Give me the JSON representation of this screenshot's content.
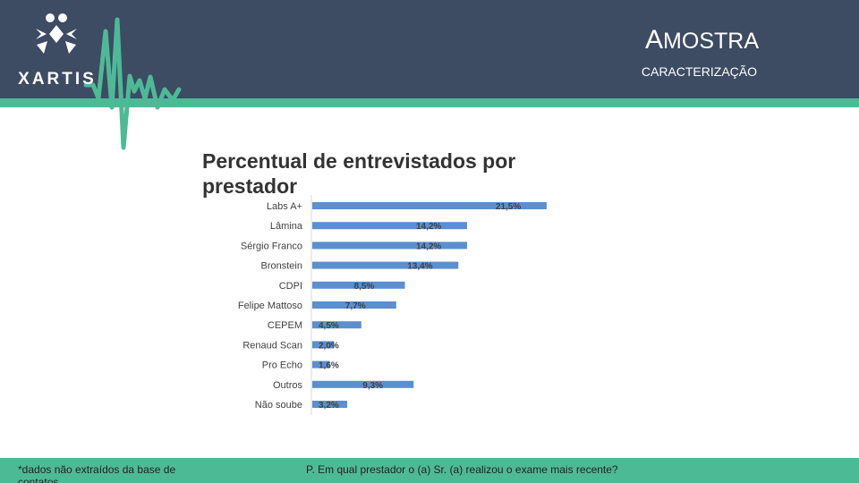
{
  "header": {
    "brand": "XARTIS",
    "title_cap": "A",
    "title_rest": "MOSTRA",
    "subtitle": "CARACTERIZAÇÃO",
    "colors": {
      "header": "#3d4b63",
      "accent": "#4dba96",
      "bar": "#5b8fd0"
    }
  },
  "chart_data": {
    "type": "bar",
    "orientation": "horizontal",
    "title": "Percentual de entrevistados por prestador",
    "categories": [
      "Labs A+",
      "Lâmina",
      "Sérgio Franco",
      "Bronstein",
      "CDPI",
      "Felipe Mattoso",
      "CEPEM",
      "Renaud Scan",
      "Pro Echo",
      "Outros",
      "Não soube"
    ],
    "values": [
      21.5,
      14.2,
      14.2,
      13.4,
      8.5,
      7.7,
      4.5,
      2.0,
      1.6,
      9.3,
      3.2
    ],
    "value_labels": [
      "21,5%",
      "14,2%",
      "14,2%",
      "13,4%",
      "8,5%",
      "7,7%",
      "4,5%",
      "2,0%",
      "1,6%",
      "9,3%",
      "3,2%"
    ],
    "xlim": [
      0,
      22
    ],
    "xlabel": "",
    "ylabel": "",
    "grid": false
  },
  "footer": {
    "note": "*dados não extraídos da base de contatos",
    "question": "P. Em qual prestador o (a) Sr. (a) realizou o exame mais recente?"
  }
}
